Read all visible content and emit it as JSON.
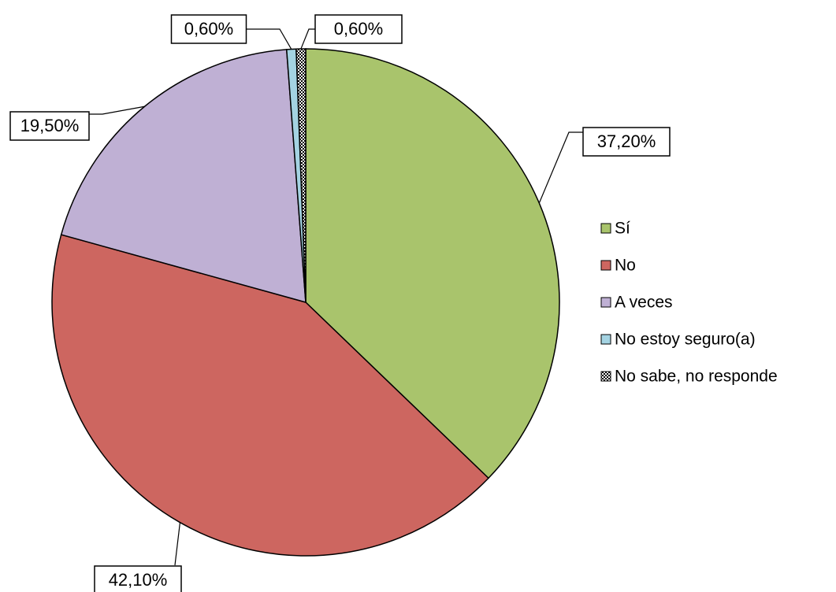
{
  "chart_data": {
    "type": "pie",
    "categories": [
      "Sí",
      "No",
      "A veces",
      "No estoy seguro(a)",
      "No sabe, no responde"
    ],
    "values": [
      37.2,
      42.1,
      19.5,
      0.6,
      0.6
    ],
    "value_labels": [
      "37,20%",
      "42,10%",
      "19,50%",
      "0,60%",
      "0,60%"
    ],
    "colors": [
      "#a9c46c",
      "#cd6660",
      "#bfb0d4",
      "#a4d3e2",
      "#ffffff"
    ],
    "hatched": [
      false,
      false,
      false,
      false,
      true
    ],
    "legend": "right"
  }
}
